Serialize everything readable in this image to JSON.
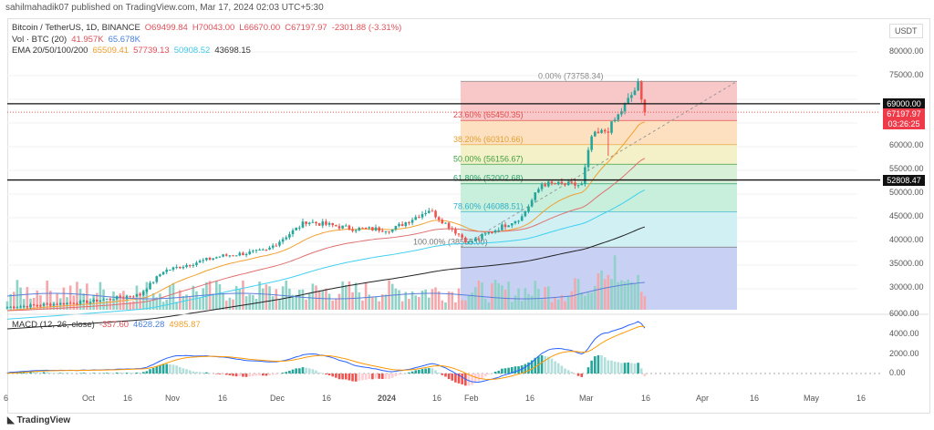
{
  "header": {
    "published": "sahilmahadik07 published on TradingView.com, Mar 17, 2024 02:03 UTC+5:30"
  },
  "legend": {
    "symbol": "Bitcoin / TetherUS, 1D, BINANCE",
    "open": "O69499.84",
    "high": "H70043.00",
    "low": "L66670.00",
    "close": "C67197.97",
    "change": "-2301.88 (-3.31%)",
    "vol_label": "Vol · BTC (20)",
    "vol1": "41.957K",
    "vol2": "65.678K",
    "ema_label": "EMA 20/50/100/200",
    "ema20": "65509.41",
    "ema50": "57739.13",
    "ema100": "50908.52",
    "ema200": "43698.15",
    "macd_label": "MACD (12, 26, close)",
    "macd_hist": "-357.60",
    "macd": "4628.28",
    "macd_signal": "4985.87"
  },
  "axis": {
    "currency": "USDT",
    "price_ticks": [
      "80000.00",
      "75000.00",
      "60000.00",
      "55000.00",
      "50000.00",
      "45000.00",
      "40000.00",
      "35000.00",
      "30000.00"
    ],
    "macd_ticks": [
      "6000.00",
      "4000.00",
      "2000.00",
      "0.00"
    ],
    "time_ticks": [
      "6",
      "Oct",
      "16",
      "Nov",
      "16",
      "Dec",
      "16",
      "2024",
      "16",
      "Feb",
      "16",
      "Mar",
      "16",
      "Apr",
      "16",
      "May",
      "16"
    ]
  },
  "tags": {
    "resistance": "69000.00",
    "price": "67197.97",
    "countdown": "03:26:25",
    "support": "52808.47"
  },
  "fib": [
    {
      "label": "0.00% (73758.34)",
      "price": 73758.34,
      "color": "#f8c8c8",
      "text": "#888"
    },
    {
      "label": "23.60% (65450.35)",
      "price": 65450.35,
      "color": "#fde0c0",
      "text": "#e05050"
    },
    {
      "label": "38.20% (60310.66)",
      "price": 60310.66,
      "color": "#f4f0c8",
      "text": "#e0a030"
    },
    {
      "label": "50.00% (56156.67)",
      "price": 56156.67,
      "color": "#d8f0d8",
      "text": "#40a040"
    },
    {
      "label": "61.80% (52002.68)",
      "price": 52002.68,
      "color": "#c8eedc",
      "text": "#30a070"
    },
    {
      "label": "78.60% (46088.51)",
      "price": 46088.51,
      "color": "#d0f0f4",
      "text": "#30b0c8"
    },
    {
      "label": "100.00% (38555.00)",
      "price": 38555.0,
      "color": "#e0e0e0",
      "text": "#777"
    }
  ],
  "chart_data": {
    "type": "candlestick",
    "title": "Bitcoin / TetherUS, 1D",
    "start": "2023-09-06",
    "end": "2024-03-16",
    "key_closes": [
      [
        0,
        25800
      ],
      [
        25,
        27000
      ],
      [
        40,
        28500
      ],
      [
        47,
        33500
      ],
      [
        64,
        36600
      ],
      [
        78,
        37800
      ],
      [
        90,
        44000
      ],
      [
        104,
        42500
      ],
      [
        116,
        42300
      ],
      [
        127,
        46500
      ],
      [
        139,
        39500
      ],
      [
        155,
        45000
      ],
      [
        161,
        52000
      ],
      [
        173,
        51700
      ],
      [
        176,
        62000
      ],
      [
        181,
        63500
      ],
      [
        184,
        66500
      ],
      [
        190,
        73000
      ],
      [
        191,
        69500
      ],
      [
        192,
        67198
      ]
    ],
    "lines": {
      "resistance": 69000,
      "support": 52808.47
    },
    "ylim": [
      28000,
      82000
    ]
  },
  "footer": {
    "brand": "TradingView"
  }
}
